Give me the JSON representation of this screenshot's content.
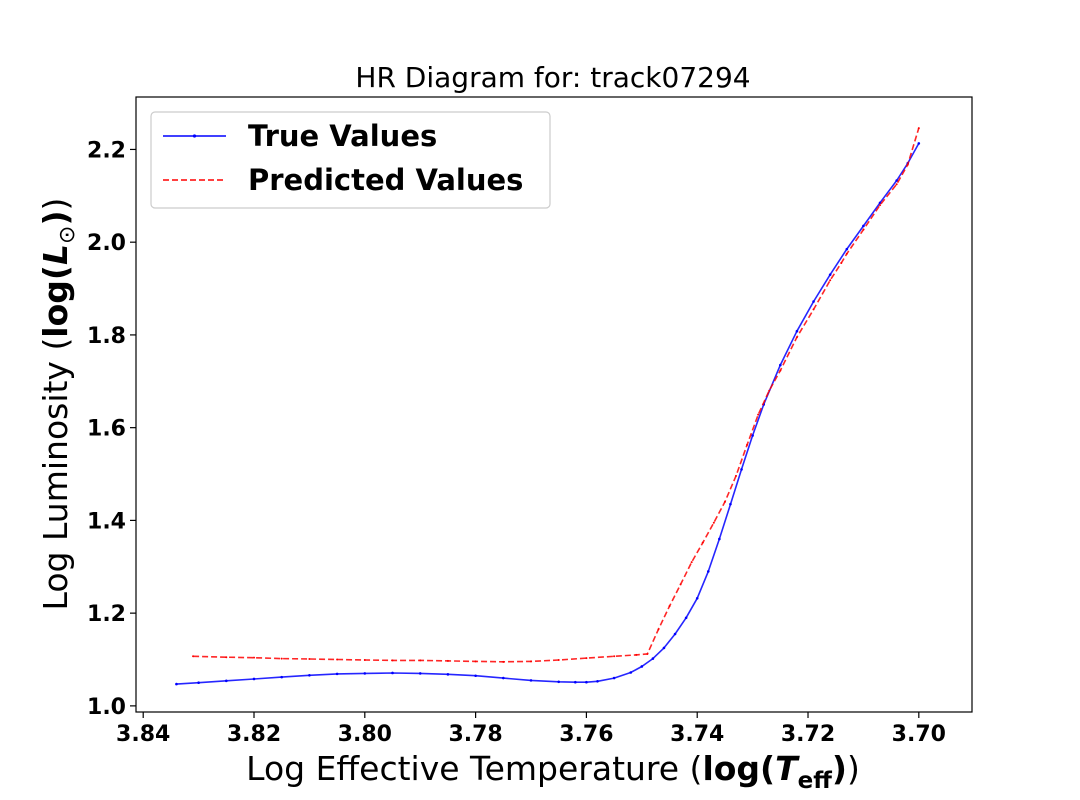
{
  "chart_data": {
    "type": "line",
    "title": "HR Diagram for: track07294",
    "xlabel": {
      "prefix": "Log Effective Temperature (",
      "math_func": "log(",
      "math_var": "T",
      "math_sub": "eff",
      "math_close": ")",
      "suffix": ")"
    },
    "ylabel": {
      "prefix": "Log Luminosity (",
      "math_func": "log(",
      "math_var": "L",
      "math_sub": "⊙",
      "math_close": ")",
      "suffix": ")"
    },
    "x_inverted": true,
    "xlim": [
      3.8413,
      3.6904
    ],
    "ylim": [
      0.9868,
      2.3131
    ],
    "xticks": [
      "3.84",
      "3.82",
      "3.80",
      "3.78",
      "3.76",
      "3.74",
      "3.72",
      "3.70"
    ],
    "xtick_values": [
      3.84,
      3.82,
      3.8,
      3.78,
      3.76,
      3.74,
      3.72,
      3.7
    ],
    "yticks": [
      "1.0",
      "1.2",
      "1.4",
      "1.6",
      "1.8",
      "2.0",
      "2.2"
    ],
    "ytick_values": [
      1.0,
      1.2,
      1.4,
      1.6,
      1.8,
      2.0,
      2.2
    ],
    "grid": false,
    "legend_position": "upper-left",
    "series": [
      {
        "name": "True Values",
        "color": "#0000ff",
        "style": "solid-with-dots",
        "x": [
          3.834,
          3.83,
          3.825,
          3.82,
          3.815,
          3.81,
          3.805,
          3.8,
          3.795,
          3.79,
          3.785,
          3.78,
          3.775,
          3.77,
          3.765,
          3.762,
          3.76,
          3.758,
          3.755,
          3.752,
          3.75,
          3.748,
          3.746,
          3.744,
          3.742,
          3.74,
          3.738,
          3.736,
          3.734,
          3.732,
          3.73,
          3.728,
          3.725,
          3.722,
          3.719,
          3.716,
          3.713,
          3.71,
          3.707,
          3.704,
          3.702,
          3.7
        ],
        "y": [
          1.047,
          1.05,
          1.054,
          1.058,
          1.062,
          1.066,
          1.069,
          1.07,
          1.071,
          1.07,
          1.068,
          1.065,
          1.06,
          1.055,
          1.052,
          1.051,
          1.051,
          1.053,
          1.06,
          1.072,
          1.085,
          1.102,
          1.125,
          1.155,
          1.19,
          1.232,
          1.29,
          1.36,
          1.435,
          1.51,
          1.583,
          1.65,
          1.735,
          1.808,
          1.872,
          1.93,
          1.985,
          2.035,
          2.085,
          2.133,
          2.17,
          2.213
        ]
      },
      {
        "name": "Predicted Values",
        "color": "#ff0000",
        "style": "dashed",
        "x": [
          3.831,
          3.825,
          3.82,
          3.815,
          3.81,
          3.805,
          3.8,
          3.795,
          3.79,
          3.785,
          3.78,
          3.775,
          3.77,
          3.765,
          3.76,
          3.755,
          3.751,
          3.749,
          3.747,
          3.745,
          3.743,
          3.741,
          3.739,
          3.737,
          3.735,
          3.733,
          3.731,
          3.729,
          3.727,
          3.725,
          3.722,
          3.719,
          3.716,
          3.714,
          3.713,
          3.71,
          3.707,
          3.704,
          3.702,
          3.7
        ],
        "y": [
          1.107,
          1.105,
          1.104,
          1.102,
          1.101,
          1.1,
          1.099,
          1.098,
          1.098,
          1.097,
          1.096,
          1.095,
          1.096,
          1.099,
          1.103,
          1.107,
          1.11,
          1.112,
          1.165,
          1.215,
          1.262,
          1.31,
          1.352,
          1.395,
          1.44,
          1.496,
          1.563,
          1.628,
          1.68,
          1.723,
          1.795,
          1.855,
          1.918,
          1.955,
          1.975,
          2.027,
          2.08,
          2.125,
          2.167,
          2.246
        ]
      }
    ]
  }
}
